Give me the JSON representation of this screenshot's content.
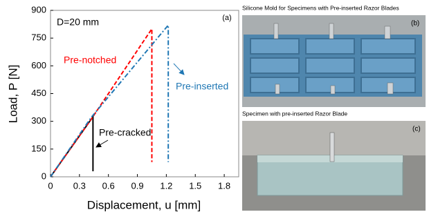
{
  "chart_data": {
    "type": "line",
    "annotations": [
      "D=20 mm",
      "(a)"
    ],
    "xlabel": "Displacement, u [mm]",
    "ylabel": "Load, P [N]",
    "xlim": [
      0,
      1.95
    ],
    "ylim": [
      0,
      900
    ],
    "xticks": [
      0,
      0.3,
      0.6,
      0.9,
      1.2,
      1.5,
      1.8
    ],
    "yticks": [
      0,
      150,
      300,
      450,
      600,
      750,
      900
    ],
    "series": [
      {
        "name": "Pre-cracked",
        "color": "#000000",
        "linestyle": "solid",
        "x": [
          0,
          0.44,
          0.44
        ],
        "values": [
          0,
          325,
          30
        ]
      },
      {
        "name": "Pre-notched",
        "color": "#ff0000",
        "linestyle": "dashed",
        "x": [
          0,
          0.42,
          1.05,
          1.05
        ],
        "values": [
          0,
          310,
          800,
          80
        ]
      },
      {
        "name": "Pre-inserted",
        "color": "#1f77b4",
        "linestyle": "dashdot",
        "x": [
          0,
          0.42,
          1.22,
          1.22
        ],
        "values": [
          0,
          320,
          820,
          80
        ]
      }
    ]
  },
  "photos": [
    {
      "caption": "Silicone Mold for Specimens with Pre-inserted Razor Blades",
      "label": "(b)"
    },
    {
      "caption": "Specimen with pre-inserted Razor Blade",
      "label": "(c)"
    }
  ]
}
